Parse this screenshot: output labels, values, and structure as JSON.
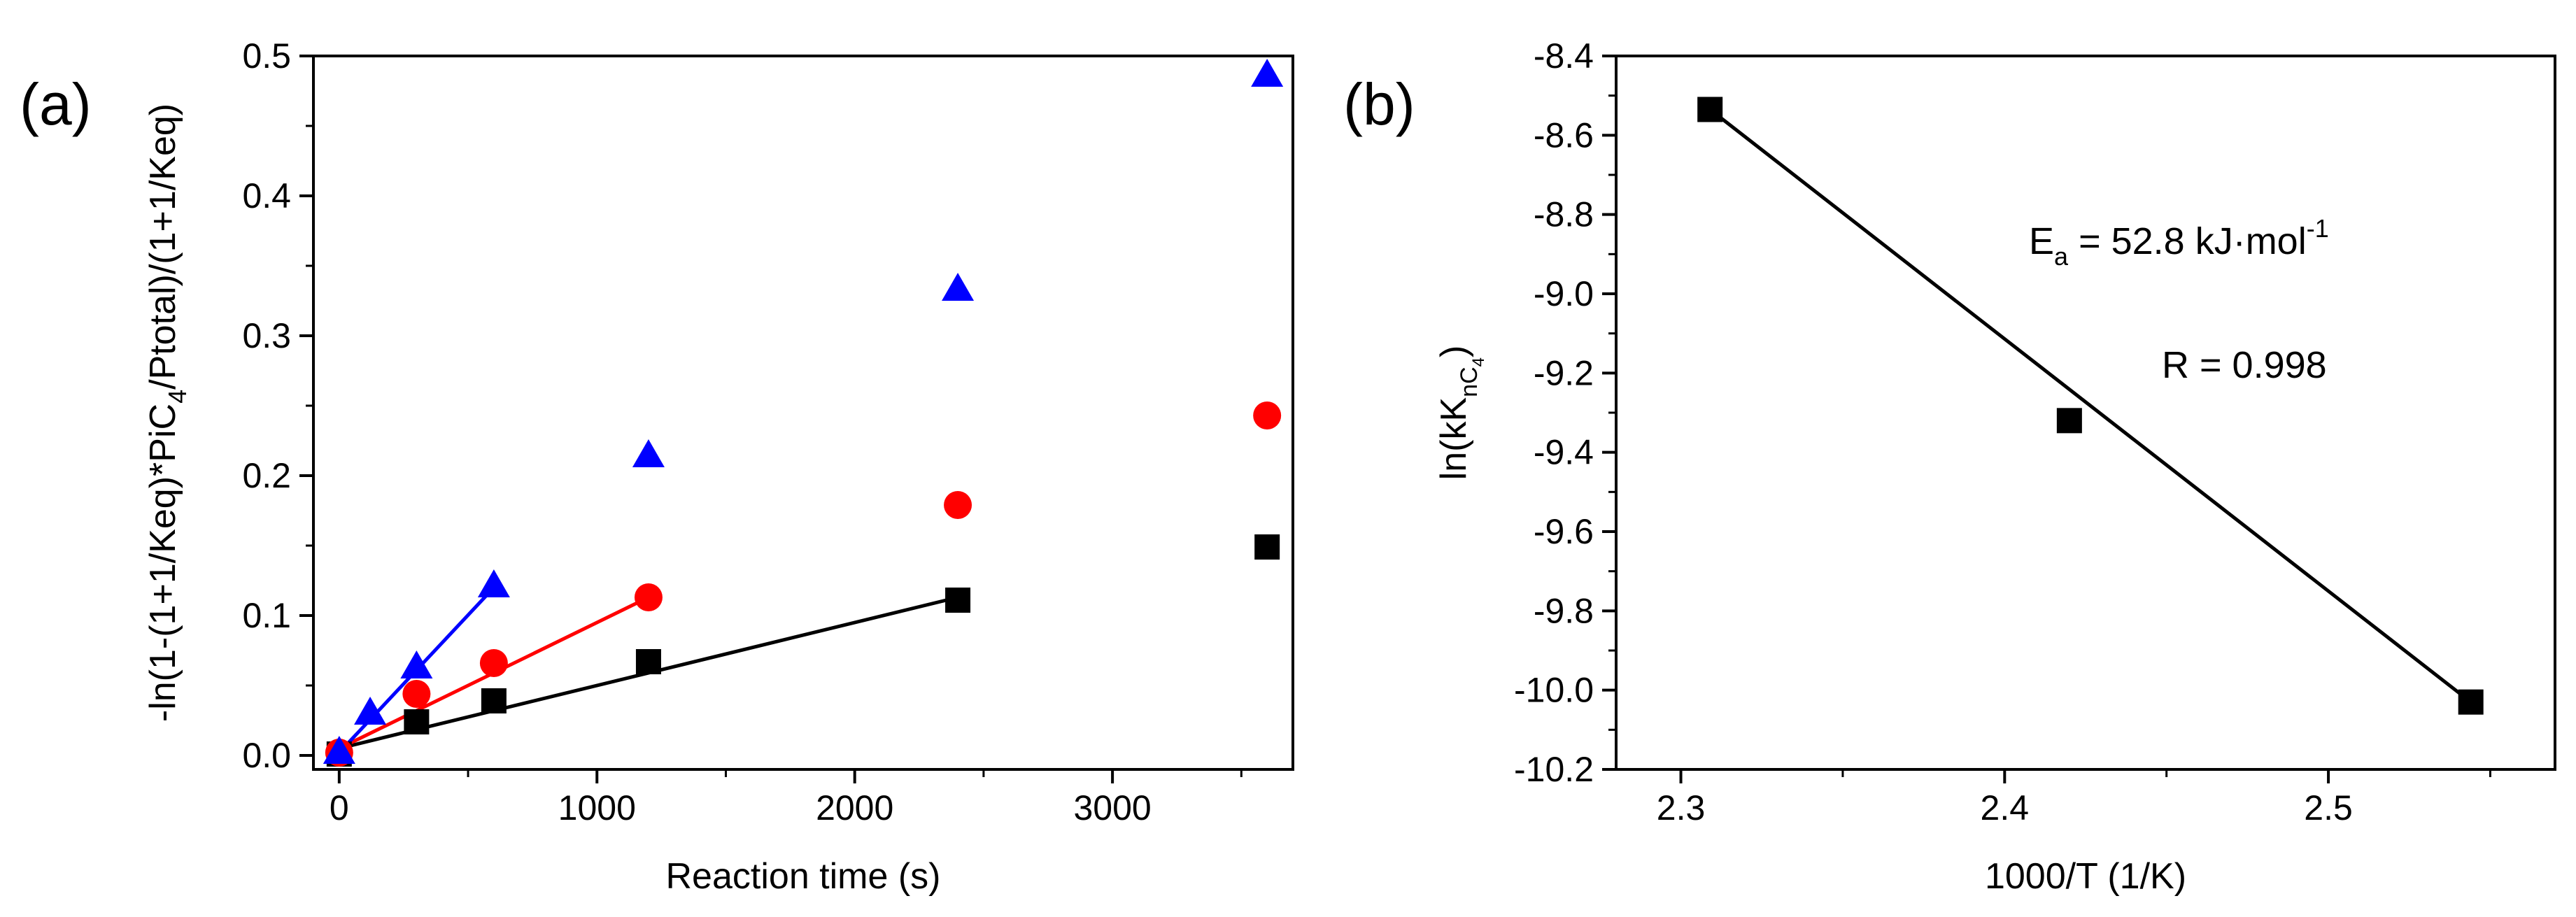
{
  "chart_data": [
    {
      "panel": "(a)",
      "type": "scatter",
      "xlabel": "Reaction time (s)",
      "ylabel_parts": [
        "-ln(1-(1+1/Keq)*PiC",
        "4",
        "/Ptotal)/(1+1/Keq)"
      ],
      "xlim": [
        -100,
        3700
      ],
      "ylim": [
        -0.01,
        0.5
      ],
      "xticks": [
        "0",
        "1000",
        "2000",
        "3000"
      ],
      "xtick_values": [
        0,
        1000,
        2000,
        3000
      ],
      "yticks": [
        "0.0",
        "0.1",
        "0.2",
        "0.3",
        "0.4",
        "0.5"
      ],
      "ytick_values": [
        0.0,
        0.1,
        0.2,
        0.3,
        0.4,
        0.5
      ],
      "series": [
        {
          "name": "black",
          "marker": "square",
          "color": "#000000",
          "x": [
            0,
            300,
            600,
            1200,
            2400,
            3600
          ],
          "y": [
            0.001,
            0.024,
            0.039,
            0.067,
            0.111,
            0.149
          ],
          "fit": {
            "x": [
              0,
              2400
            ],
            "y": [
              0.005,
              0.113
            ]
          }
        },
        {
          "name": "red",
          "marker": "circle",
          "color": "#ff0000",
          "x": [
            0,
            300,
            600,
            1200,
            2400,
            3600
          ],
          "y": [
            0.002,
            0.044,
            0.066,
            0.113,
            0.179,
            0.243
          ],
          "fit": {
            "x": [
              0,
              1200
            ],
            "y": [
              0.005,
              0.113
            ]
          }
        },
        {
          "name": "blue",
          "marker": "triangle",
          "color": "#0000ff",
          "x": [
            0,
            120,
            300,
            600,
            1200,
            2400,
            3600
          ],
          "y": [
            0.002,
            0.03,
            0.063,
            0.121,
            0.214,
            0.333,
            0.486
          ],
          "fit": {
            "x": [
              0,
              600
            ],
            "y": [
              0.002,
              0.12
            ]
          }
        }
      ]
    },
    {
      "panel": "(b)",
      "type": "scatter",
      "xlabel": "1000/T (1/K)",
      "ylabel_parts": [
        "ln(kK",
        "nC",
        "4",
        ")"
      ],
      "xlim": [
        2.28,
        2.57
      ],
      "ylim": [
        -10.2,
        -8.4
      ],
      "xticks": [
        "2.3",
        "2.4",
        "2.5"
      ],
      "xtick_values": [
        2.3,
        2.4,
        2.5
      ],
      "yticks": [
        "-8.4",
        "-8.6",
        "-8.8",
        "-9.0",
        "-9.2",
        "-9.4",
        "-9.6",
        "-9.8",
        "-10.0",
        "-10.2"
      ],
      "ytick_values": [
        -8.4,
        -8.6,
        -8.8,
        -9.0,
        -9.2,
        -9.4,
        -9.6,
        -9.8,
        -10.0,
        -10.2
      ],
      "series": [
        {
          "name": "ln(kK)",
          "marker": "square",
          "color": "#000000",
          "x": [
            2.309,
            2.42,
            2.544
          ],
          "y": [
            -8.535,
            -9.32,
            -10.03
          ],
          "fit": {
            "x": [
              2.309,
              2.544
            ],
            "y": [
              -8.535,
              -10.03
            ]
          }
        }
      ],
      "annotations": {
        "ea_prefix": "E",
        "ea_sub": "a",
        "ea_main": " = 52.8 kJ·mol",
        "ea_sup": "-1",
        "r_text": "R = 0.998"
      }
    }
  ]
}
